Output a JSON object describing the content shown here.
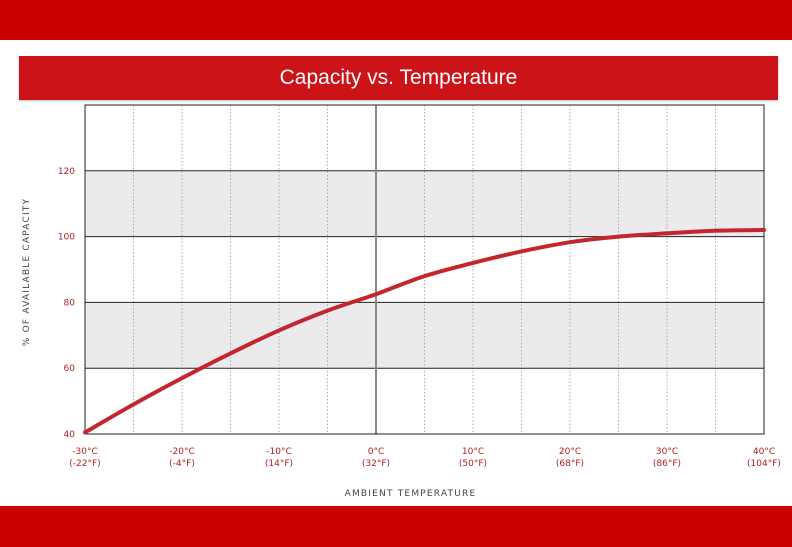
{
  "colors": {
    "band": "#cc0000",
    "title_bar": "#cc1318",
    "curve": "#c4262e",
    "shaded_band": "#ebebee",
    "tick_text": "#b01e24"
  },
  "chart_data": {
    "type": "line",
    "title": "Capacity vs. Temperature",
    "xlabel": "AMBIENT TEMPERATURE",
    "ylabel": "% OF AVAILABLE CAPACITY",
    "xlim": [
      -30,
      40
    ],
    "ylim": [
      40,
      140
    ],
    "x_ticks": [
      {
        "value": -30,
        "label_c": "-30°C",
        "label_f": "(-22°F)"
      },
      {
        "value": -20,
        "label_c": "-20°C",
        "label_f": "(-4°F)"
      },
      {
        "value": -10,
        "label_c": "-10°C",
        "label_f": "(14°F)"
      },
      {
        "value": 0,
        "label_c": "0°C",
        "label_f": "(32°F)"
      },
      {
        "value": 10,
        "label_c": "10°C",
        "label_f": "(50°F)"
      },
      {
        "value": 20,
        "label_c": "20°C",
        "label_f": "(68°F)"
      },
      {
        "value": 30,
        "label_c": "30°C",
        "label_f": "(86°F)"
      },
      {
        "value": 40,
        "label_c": "40°C",
        "label_f": "(104°F)"
      }
    ],
    "y_ticks": [
      {
        "value": 40,
        "label": "40"
      },
      {
        "value": 60,
        "label": "60"
      },
      {
        "value": 80,
        "label": "80"
      },
      {
        "value": 100,
        "label": "100"
      },
      {
        "value": 120,
        "label": "120"
      }
    ],
    "shaded_bands": [
      [
        60,
        80
      ],
      [
        100,
        120
      ]
    ],
    "grid_major_y": true,
    "grid_minor_x": true,
    "series": [
      {
        "x": [
          -30,
          -25,
          -20,
          -15,
          -10,
          -5,
          0,
          5,
          10,
          15,
          20,
          25,
          30,
          35,
          40
        ],
        "values": [
          40.5,
          49,
          57,
          64.5,
          71.5,
          77.5,
          82.5,
          88,
          92,
          95.5,
          98.3,
          100,
          101,
          101.8,
          102
        ]
      }
    ]
  }
}
